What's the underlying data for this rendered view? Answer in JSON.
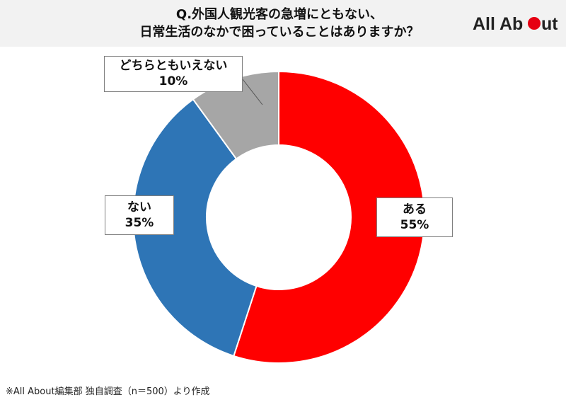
{
  "header": {
    "title_line1": "Q.外国人観光客の急増にともない、",
    "title_line2": "日常生活のなかで困っていることはありますか？",
    "logo_text_left": "All Ab",
    "logo_text_right": "ut"
  },
  "chart_data": {
    "type": "pie",
    "variant": "donut",
    "categories": [
      "ある",
      "ない",
      "どちらともいえない"
    ],
    "values": [
      55,
      35,
      10
    ],
    "value_labels": [
      "55%",
      "35%",
      "10%"
    ],
    "colors": [
      "#ff0000",
      "#2e75b6",
      "#a6a6a6"
    ],
    "legend": "none"
  },
  "footnote": "※All About編集部 独自調査（n＝500）より作成",
  "colors": {
    "header_bg": "#f2f2f2",
    "logo_dot": "#e60012"
  }
}
